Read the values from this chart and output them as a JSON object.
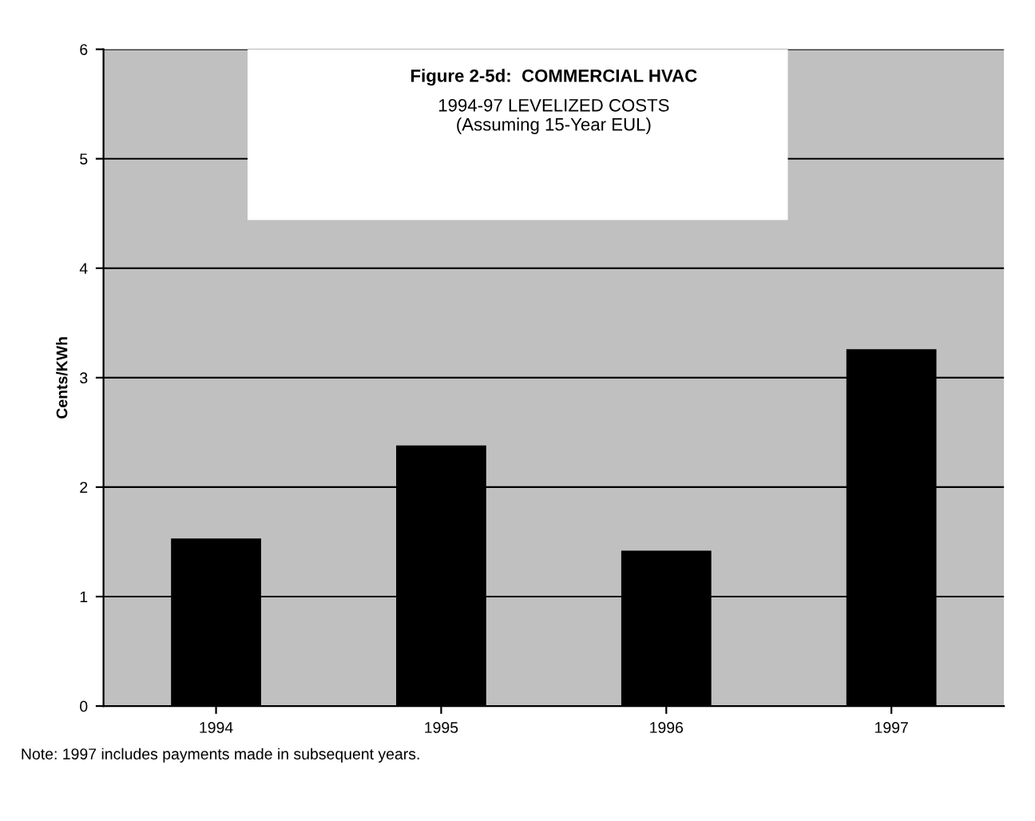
{
  "chart_data": {
    "type": "bar",
    "title": "Figure 2-5d:  COMMERCIAL HVAC",
    "subtitle": "1994-97 LEVELIZED COSTS\n(Assuming 15-Year EUL)",
    "ylabel": "Cents/KWh",
    "categories": [
      "1994",
      "1995",
      "1996",
      "1997"
    ],
    "values": [
      1.53,
      2.38,
      1.42,
      3.26
    ],
    "color": "#000000",
    "ylim": [
      0,
      6
    ],
    "yticks": [
      0,
      1,
      2,
      3,
      4,
      5,
      6
    ],
    "grid": "y",
    "legend": false,
    "annotations": [
      "Note: 1997 includes payments made in subsequent years."
    ]
  }
}
